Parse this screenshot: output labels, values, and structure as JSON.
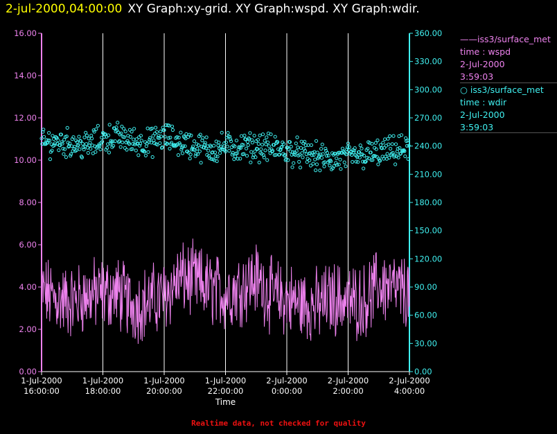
{
  "header": {
    "timestamp": "2-jul-2000,04:00:00",
    "graph_titles": "XY Graph:xy-grid.  XY Graph:wspd.  XY Graph:wdir."
  },
  "legend": [
    {
      "symbol": "——",
      "source": "iss3/surface_met",
      "variable": "time : wspd",
      "date": "2-Jul-2000",
      "time": "3:59:03",
      "color": "#ee82ee"
    },
    {
      "symbol": "○",
      "source": "iss3/surface_met",
      "variable": "time : wdir",
      "date": "2-Jul-2000",
      "time": "3:59:03",
      "color": "#40f0f0"
    }
  ],
  "footer": "Realtime data, not checked for quality",
  "chart_data": {
    "type": "line",
    "xlabel": "Time",
    "x_ticks": [
      {
        "date": "1-Jul-2000",
        "time": "16:00:00"
      },
      {
        "date": "1-Jul-2000",
        "time": "18:00:00"
      },
      {
        "date": "1-Jul-2000",
        "time": "20:00:00"
      },
      {
        "date": "1-Jul-2000",
        "time": "22:00:00"
      },
      {
        "date": "2-Jul-2000",
        "time": "0:00:00"
      },
      {
        "date": "2-Jul-2000",
        "time": "2:00:00"
      },
      {
        "date": "2-Jul-2000",
        "time": "4:00:00"
      }
    ],
    "xlim": [
      "2000-07-01 16:00",
      "2000-07-02 04:00"
    ],
    "y_left": {
      "ylim": [
        0,
        16
      ],
      "ticks": [
        "0.00",
        "2.00",
        "4.00",
        "6.00",
        "8.00",
        "10.00",
        "12.00",
        "14.00",
        "16.00"
      ],
      "color": "#ee82ee"
    },
    "y_right": {
      "ylim": [
        0,
        360
      ],
      "ticks": [
        "0.00",
        "30.00",
        "60.00",
        "90.00",
        "120.00",
        "150.00",
        "180.00",
        "210.00",
        "240.00",
        "270.00",
        "300.00",
        "330.00",
        "360.00"
      ],
      "color": "#40f0f0"
    },
    "vertical_grid": true,
    "series": [
      {
        "name": "iss3/surface_met time : wspd",
        "axis": "left",
        "style": "line",
        "color": "#ee82ee",
        "x": [
          "16:00",
          "16:30",
          "17:00",
          "17:30",
          "18:00",
          "18:30",
          "19:00",
          "19:30",
          "20:00",
          "20:30",
          "21:00",
          "21:30",
          "22:00",
          "22:30",
          "23:00",
          "23:30",
          "0:00",
          "0:30",
          "1:00",
          "1:30",
          "2:00",
          "2:30",
          "3:00",
          "3:30",
          "4:00"
        ],
        "values": [
          3.8,
          3.4,
          3.3,
          3.6,
          3.7,
          3.7,
          3.1,
          3.3,
          3.6,
          4.4,
          4.3,
          3.9,
          3.7,
          4.0,
          4.4,
          3.6,
          3.4,
          3.2,
          3.1,
          3.5,
          3.3,
          3.3,
          4.1,
          3.9,
          3.7
        ],
        "range_approx": [
          1.0,
          6.8
        ]
      },
      {
        "name": "iss3/surface_met time : wdir",
        "axis": "right",
        "style": "scatter",
        "marker": "open-circle",
        "color": "#40f0f0",
        "x": [
          "16:00",
          "16:30",
          "17:00",
          "17:30",
          "18:00",
          "18:30",
          "19:00",
          "19:30",
          "20:00",
          "20:30",
          "21:00",
          "21:30",
          "22:00",
          "22:30",
          "23:00",
          "23:30",
          "0:00",
          "0:30",
          "1:00",
          "1:30",
          "2:00",
          "2:30",
          "3:00",
          "3:30",
          "4:00"
        ],
        "values": [
          242,
          245,
          243,
          240,
          248,
          250,
          245,
          243,
          250,
          244,
          240,
          236,
          240,
          238,
          240,
          238,
          235,
          232,
          228,
          225,
          228,
          230,
          232,
          235,
          237
        ],
        "range_approx": [
          200,
          285
        ]
      }
    ]
  }
}
